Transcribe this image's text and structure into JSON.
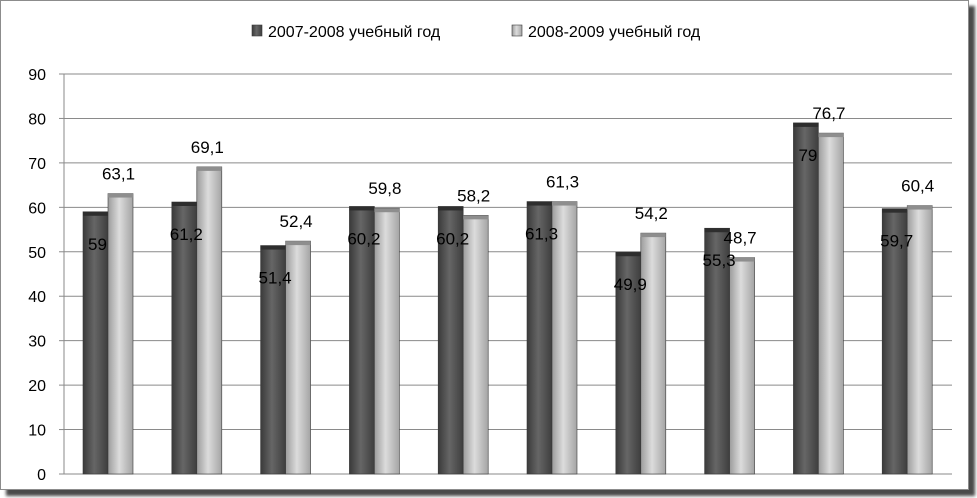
{
  "chart_data": {
    "type": "bar",
    "categories": [
      "",
      "",
      "",
      "",
      "",
      "",
      "",
      "",
      "",
      ""
    ],
    "series": [
      {
        "name": "2007-2008 учебный год",
        "values": [
          59,
          61.2,
          51.4,
          60.2,
          60.2,
          61.3,
          49.9,
          55.3,
          79,
          59.7
        ]
      },
      {
        "name": "2008-2009 учебный год",
        "values": [
          63.1,
          69.1,
          52.4,
          59.8,
          58.2,
          61.3,
          54.2,
          48.7,
          76.7,
          60.4
        ]
      }
    ],
    "data_labels": [
      [
        "59",
        "61,2",
        "51,4",
        "60,2",
        "60,2",
        "61,3",
        "49,9",
        "55,3",
        "79",
        "59,7"
      ],
      [
        "63,1",
        "69,1",
        "52,4",
        "59,8",
        "58,2",
        "61,3",
        "54,2",
        "48,7",
        "76,7",
        "60,4"
      ]
    ],
    "ylim": [
      0,
      90
    ],
    "yticks": [
      0,
      10,
      20,
      30,
      40,
      50,
      60,
      70,
      80,
      90
    ],
    "grid": true,
    "legend_position": "top",
    "colors": {
      "series1": "#4d4d4d",
      "series2": "#bdbdbd"
    }
  }
}
